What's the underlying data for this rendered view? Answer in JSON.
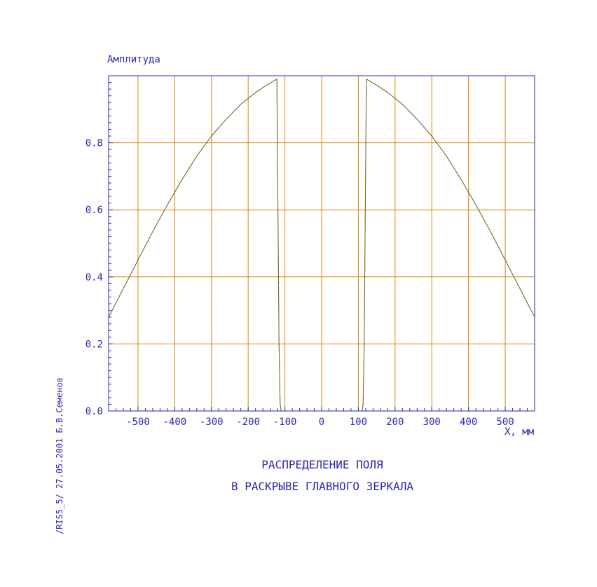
{
  "chart_data": {
    "type": "line",
    "ylabel": "Амплитуда",
    "xlabel": "X, мм",
    "title_lines": [
      "РАСПРЕДЕЛЕНИЕ ПОЛЯ",
      "В РАСКРЫВЕ ГЛАВНОГО ЗЕРКАЛА"
    ],
    "xlim": [
      -580,
      580
    ],
    "ylim": [
      0,
      1.0
    ],
    "x_ticks": [
      -500,
      -400,
      -300,
      -200,
      -100,
      0,
      100,
      200,
      300,
      400,
      500
    ],
    "x_tick_labels": [
      "-500",
      "-400",
      "-300",
      "-200",
      "-100",
      "0",
      "100",
      "200",
      "300",
      "400",
      "500"
    ],
    "y_ticks": [
      0.0,
      0.2,
      0.4,
      0.6,
      0.8
    ],
    "y_tick_labels": [
      "0.0",
      "0.2",
      "0.4",
      "0.6",
      "0.8"
    ],
    "grid": true,
    "series": [
      {
        "color": "#cc2222",
        "x": [
          -580,
          -540,
          -500,
          -460,
          -420,
          -380,
          -340,
          -300,
          -260,
          -220,
          -180,
          -150,
          -122,
          -119,
          -116,
          -113,
          -110,
          110,
          113,
          116,
          119,
          122,
          150,
          180,
          220,
          260,
          300,
          340,
          380,
          420,
          460,
          500,
          540,
          580
        ],
        "y": [
          0.28,
          0.365,
          0.45,
          0.535,
          0.615,
          0.69,
          0.76,
          0.82,
          0.87,
          0.915,
          0.95,
          0.972,
          0.99,
          0.62,
          0.2,
          0.02,
          0.0,
          0.0,
          0.02,
          0.2,
          0.62,
          0.99,
          0.972,
          0.95,
          0.915,
          0.87,
          0.82,
          0.76,
          0.69,
          0.615,
          0.535,
          0.45,
          0.365,
          0.28
        ]
      },
      {
        "color": "#22aa22",
        "x": [
          -580,
          -540,
          -500,
          -460,
          -420,
          -380,
          -340,
          -300,
          -260,
          -220,
          -180,
          -150,
          -122,
          -119,
          -116,
          -113,
          -110,
          110,
          113,
          116,
          119,
          122,
          150,
          180,
          220,
          260,
          300,
          340,
          380,
          420,
          460,
          500,
          540,
          580
        ],
        "y": [
          0.28,
          0.365,
          0.45,
          0.535,
          0.615,
          0.69,
          0.76,
          0.82,
          0.87,
          0.915,
          0.95,
          0.972,
          0.99,
          0.62,
          0.2,
          0.02,
          0.0,
          0.0,
          0.02,
          0.2,
          0.62,
          0.99,
          0.972,
          0.95,
          0.915,
          0.87,
          0.82,
          0.76,
          0.69,
          0.615,
          0.535,
          0.45,
          0.365,
          0.28
        ]
      }
    ]
  },
  "side_note": "/RIS5_5/  27.05.2001  Б.В.Семенов",
  "colors": {
    "axis": "#2a2ab0",
    "grid": "#d4880a",
    "text": "#2a2ab0"
  }
}
